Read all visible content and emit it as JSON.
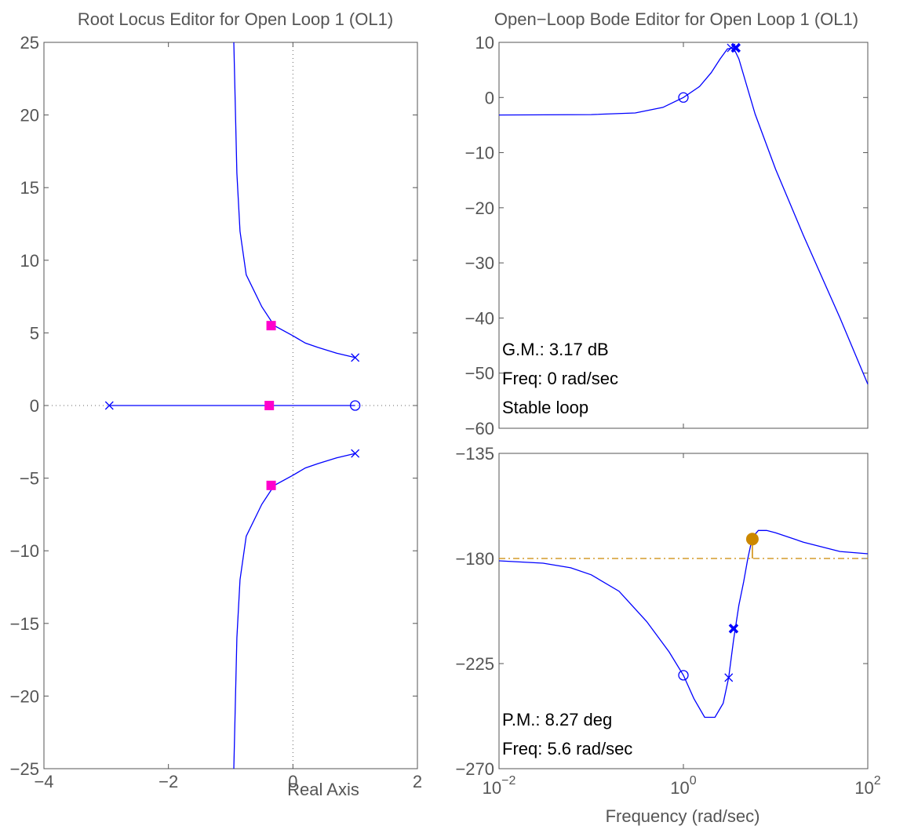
{
  "colors": {
    "locus": "#0000ff",
    "closed_loop_marker": "#ff00cc",
    "phase_ref": "#cc8800",
    "axes": "#555555",
    "annotation": "#000000"
  },
  "chart_data": [
    {
      "type": "line",
      "panel": "root-locus",
      "title": "Root Locus Editor for Open Loop 1 (OL1)",
      "xlabel": "Real Axis",
      "ylabel": "",
      "xlim": [
        -4,
        2
      ],
      "ylim": [
        -25,
        25
      ],
      "xticks": [
        -4,
        -2,
        0,
        2
      ],
      "xtick_labels": [
        "−4",
        "−2",
        "0",
        "2"
      ],
      "yticks": [
        25,
        20,
        15,
        10,
        5,
        0,
        -5,
        -10,
        -15,
        -20,
        -25
      ],
      "ytick_labels": [
        "25",
        "20",
        "15",
        "10",
        "5",
        "0",
        "−5",
        "−10",
        "−15",
        "−20",
        "−25"
      ],
      "grid": false,
      "guide_lines": [
        {
          "axis": "x",
          "value": 0,
          "style": "dotted"
        },
        {
          "axis": "y",
          "value": 0,
          "style": "dotted"
        }
      ],
      "series": [
        {
          "x": [
            1.0,
            0.7,
            0.4,
            0.2,
            0.0,
            -0.3,
            -0.5,
            -0.75,
            -0.85,
            -0.9,
            -0.95
          ],
          "y": [
            3.3,
            3.6,
            4.0,
            4.3,
            4.8,
            5.5,
            6.8,
            9.0,
            12.0,
            16.0,
            25.0
          ]
        },
        {
          "x": [
            1.0,
            0.7,
            0.4,
            0.2,
            0.0,
            -0.3,
            -0.5,
            -0.75,
            -0.85,
            -0.9,
            -0.95
          ],
          "y": [
            -3.3,
            -3.6,
            -4.0,
            -4.3,
            -4.8,
            -5.5,
            -6.8,
            -9.0,
            -12.0,
            -16.0,
            -25.0
          ]
        },
        {
          "x": [
            -2.95,
            1.0
          ],
          "y": [
            0,
            0
          ]
        }
      ],
      "open_loop_poles": [
        {
          "x": -2.95,
          "y": 0
        },
        {
          "x": 1.0,
          "y": 3.3
        },
        {
          "x": 1.0,
          "y": -3.3
        }
      ],
      "open_loop_zeros": [
        {
          "x": 1.0,
          "y": 0
        }
      ],
      "closed_loop_poles": [
        {
          "x": -0.35,
          "y": 5.5
        },
        {
          "x": -0.38,
          "y": 0
        },
        {
          "x": -0.35,
          "y": -5.5
        }
      ]
    },
    {
      "type": "line",
      "panel": "bode-magnitude",
      "title": "Open−Loop Bode Editor for Open Loop 1 (OL1)",
      "xscale": "log",
      "xlim": [
        0.01,
        100
      ],
      "ylim": [
        -60,
        10
      ],
      "yticks": [
        10,
        0,
        -10,
        -20,
        -30,
        -40,
        -50,
        -60
      ],
      "ytick_labels": [
        "10",
        "0",
        "−10",
        "−20",
        "−30",
        "−40",
        "−50",
        "−60"
      ],
      "grid": false,
      "series": [
        {
          "x": [
            0.01,
            0.1,
            0.3,
            0.6,
            1.0,
            1.5,
            2.0,
            2.5,
            3.0,
            3.5,
            4.0,
            6.0,
            10,
            20,
            50,
            100
          ],
          "y": [
            -3.17,
            -3.1,
            -2.8,
            -1.8,
            0.0,
            2.0,
            4.5,
            7.0,
            8.8,
            9.0,
            7.0,
            -3.0,
            -13.0,
            -25.0,
            -40.0,
            -52.0
          ]
        }
      ],
      "open_loop_poles": [
        {
          "x": 3.3,
          "y": 9.0
        }
      ],
      "open_loop_zeros": [
        {
          "x": 1.0,
          "y": 0.0
        }
      ],
      "closed_loop_poles": [
        {
          "x": 3.7,
          "y": 9.0
        }
      ],
      "annotations": [
        "G.M.: 3.17 dB",
        "Freq: 0 rad/sec",
        "Stable loop"
      ]
    },
    {
      "type": "line",
      "panel": "bode-phase",
      "xscale": "log",
      "xlim": [
        0.01,
        100
      ],
      "ylim": [
        -270,
        -135
      ],
      "xlabel": "Frequency (rad/sec)",
      "xtick_labels": [
        {
          "base": "10",
          "exp": "−2"
        },
        {
          "base": "10",
          "exp": "0"
        },
        {
          "base": "10",
          "exp": "2"
        }
      ],
      "xticks": [
        0.01,
        1,
        100
      ],
      "yticks": [
        -135,
        -180,
        -225,
        -270
      ],
      "ytick_labels": [
        "−135",
        "−180",
        "−225",
        "−270"
      ],
      "grid": false,
      "series": [
        {
          "x": [
            0.01,
            0.03,
            0.06,
            0.1,
            0.2,
            0.4,
            0.7,
            1.0,
            1.3,
            1.7,
            2.2,
            2.7,
            3.1,
            3.5,
            4.0,
            4.5,
            5.0,
            5.6,
            6.5,
            8.0,
            10,
            20,
            50,
            100
          ],
          "y": [
            -181.0,
            -182.0,
            -184.0,
            -187.0,
            -194.0,
            -207.0,
            -220.0,
            -230.0,
            -240.0,
            -248.0,
            -248.0,
            -242.0,
            -231.0,
            -215.0,
            -200.0,
            -190.0,
            -180.0,
            -171.0,
            -168.0,
            -168.0,
            -169.0,
            -173.0,
            -177.0,
            -178.0
          ]
        }
      ],
      "reference_line": {
        "y": -180,
        "style": "dash-dot"
      },
      "open_loop_poles": [
        {
          "x": 3.1,
          "y": -231.0
        }
      ],
      "open_loop_zeros": [
        {
          "x": 1.0,
          "y": -230.0
        }
      ],
      "closed_loop_poles": [
        {
          "x": 3.5,
          "y": -210.0
        }
      ],
      "margin_marker": {
        "x": 5.6,
        "y": -171.7,
        "ref": -180
      },
      "annotations": [
        "P.M.: 8.27 deg",
        "Freq: 5.6 rad/sec"
      ]
    }
  ]
}
